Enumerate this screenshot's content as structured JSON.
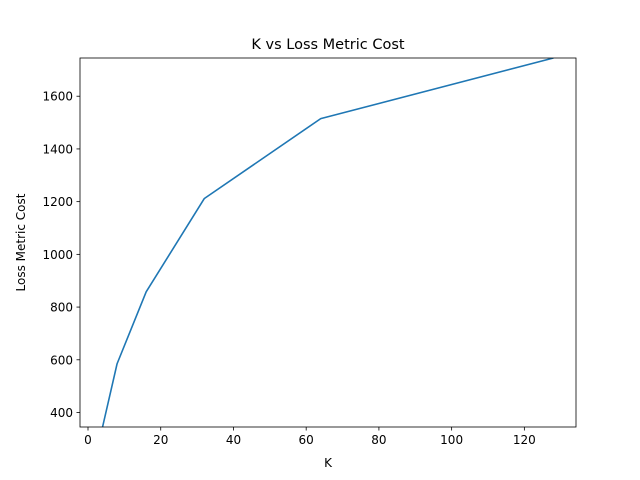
{
  "chart_data": {
    "type": "line",
    "title": "K vs Loss Metric Cost",
    "xlabel": "K",
    "ylabel": "Loss Metric Cost",
    "xlim": [
      -2.2,
      134.2
    ],
    "ylim": [
      345,
      1745
    ],
    "xticks": [
      0,
      20,
      40,
      60,
      80,
      100,
      120
    ],
    "yticks": [
      400,
      600,
      800,
      1000,
      1200,
      1400,
      1600
    ],
    "grid": false,
    "series": [
      {
        "color": "#1f77b4",
        "x": [
          4,
          8,
          16,
          32,
          64,
          128
        ],
        "y": [
          345,
          585,
          858,
          1212,
          1515,
          1745
        ]
      }
    ]
  }
}
